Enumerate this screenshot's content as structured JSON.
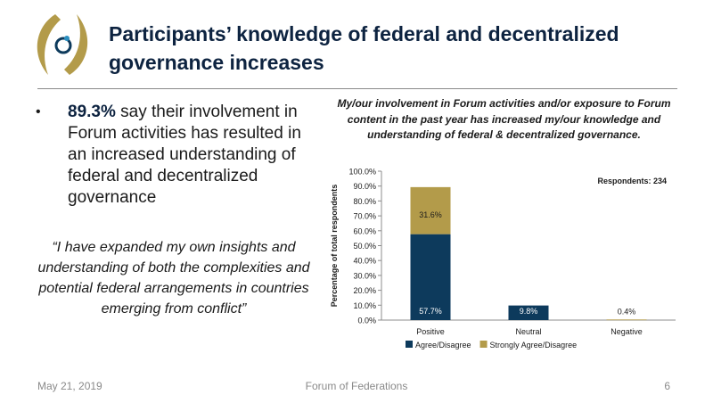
{
  "slide": {
    "title": "Participants’ knowledge of federal and decentralized governance increases",
    "bullet": {
      "stat": "89.3%",
      "text": " say their involvement in Forum activities has resulted in an increased understanding of federal and decentralized governance"
    },
    "quote": "“I have expanded my own insights and understanding of both the complexities and potential federal arrangements in countries emerging from conflict”"
  },
  "footer": {
    "date": "May 21, 2019",
    "organization": "Forum of Federations",
    "page_number": "6"
  },
  "colors": {
    "title_navy": "#0d2340",
    "agree": "#0d3a5c",
    "strongly": "#b39b4a",
    "logo_gold": "#b39b4a",
    "logo_navy": "#0d3a5c",
    "logo_teal": "#2b8fc0"
  },
  "chart_data": {
    "type": "bar",
    "stacked": true,
    "title": "My/our involvement in Forum activities and/or exposure to Forum content in the past year has increased my/our knowledge and understanding of federal & decentralized governance.",
    "ylabel": "Percentage of total respondents",
    "xlabel": "",
    "ylim": [
      0,
      100
    ],
    "yticks": [
      "0.0%",
      "10.0%",
      "20.0%",
      "30.0%",
      "40.0%",
      "50.0%",
      "60.0%",
      "70.0%",
      "80.0%",
      "90.0%",
      "100.0%"
    ],
    "categories": [
      "Positive",
      "Neutral",
      "Negative"
    ],
    "series": [
      {
        "name": "Agree/Disagree",
        "values": [
          57.7,
          9.8,
          0
        ],
        "labels": [
          "57.7%",
          "9.8%",
          ""
        ]
      },
      {
        "name": "Strongly Agree/Disagree",
        "values": [
          31.6,
          0,
          0.4
        ],
        "labels": [
          "31.6%",
          "",
          "0.4%"
        ]
      }
    ],
    "annotation": "Respondents: 234",
    "legend_position": "bottom"
  }
}
